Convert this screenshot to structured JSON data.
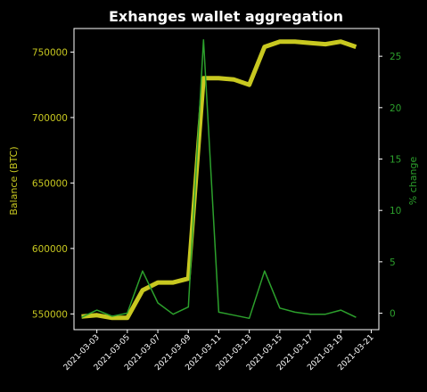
{
  "chart_data": {
    "type": "line",
    "title": "Exhanges wallet aggregation",
    "x": [
      "2021-03-02",
      "2021-03-03",
      "2021-03-04",
      "2021-03-05",
      "2021-03-06",
      "2021-03-07",
      "2021-03-08",
      "2021-03-09",
      "2021-03-10",
      "2021-03-11",
      "2021-03-12",
      "2021-03-13",
      "2021-03-14",
      "2021-03-15",
      "2021-03-16",
      "2021-03-17",
      "2021-03-18",
      "2021-03-19",
      "2021-03-20"
    ],
    "x_ticks": [
      "2021-03-03",
      "2021-03-05",
      "2021-03-07",
      "2021-03-09",
      "2021-03-11",
      "2021-03-13",
      "2021-03-15",
      "2021-03-17",
      "2021-03-19",
      "2021-03-21"
    ],
    "xlim": [
      "2021-03-01T12:00",
      "2021-03-21T12:00"
    ],
    "series": [
      {
        "axis": "left",
        "color": "#c8c820",
        "values": [
          548000,
          549000,
          547000,
          547000,
          568000,
          574000,
          574000,
          577000,
          730000,
          730000,
          729000,
          725000,
          754000,
          758000,
          758000,
          757000,
          756000,
          758000,
          754000
        ]
      },
      {
        "axis": "right",
        "color": "#2ca02c",
        "values": [
          -0.4,
          0.3,
          -0.3,
          0.0,
          4.1,
          1.0,
          -0.1,
          0.6,
          26.6,
          0.1,
          -0.2,
          -0.5,
          4.1,
          0.5,
          0.1,
          -0.1,
          -0.1,
          0.3,
          -0.4
        ]
      }
    ],
    "y_left": {
      "label": "Balance (BTC)",
      "ticks": [
        550000,
        600000,
        650000,
        700000,
        750000
      ],
      "lim": [
        538000,
        768000
      ]
    },
    "y_right": {
      "label": "% change",
      "ticks": [
        0,
        5,
        10,
        15,
        20,
        25
      ],
      "lim": [
        -1.6,
        27.7
      ]
    },
    "grid": false,
    "colors": {
      "background": "#000000",
      "left_axis": "#c8c820",
      "right_axis": "#2ca02c",
      "title": "#ffffff",
      "xticks": "#ffffff"
    }
  }
}
